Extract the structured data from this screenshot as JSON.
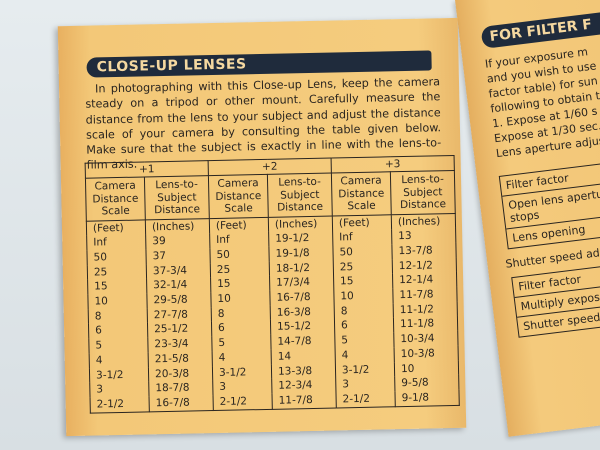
{
  "left_page": {
    "title": "CLOSE-UP LENSES",
    "intro": "In photographing with this Close-up Lens, keep the camera steady on a tripod or other mount. Carefully measure the distance from the lens to your subject and adjust the distance scale of your camera by consulting the table given below. Make sure that the subject is exactly in line with the lens-to-film axis.",
    "table": {
      "groups": [
        "+1",
        "+2",
        "+3"
      ],
      "col_headers": [
        "Camera Distance Scale",
        "Lens-to-Subject Distance"
      ],
      "units": [
        "(Feet)",
        "(Inches)"
      ],
      "camera_scale": [
        "Inf",
        "50",
        "25",
        "15",
        "10",
        "8",
        "6",
        "5",
        "4",
        "3-1/2",
        "3",
        "2-1/2"
      ],
      "plus1": [
        "39",
        "37",
        "37-3/4",
        "32-1/4",
        "29-5/8",
        "27-7/8",
        "25-1/2",
        "23-3/4",
        "21-5/8",
        "20-3/8",
        "18-7/8",
        "16-7/8"
      ],
      "plus2": [
        "19-1/2",
        "19-1/8",
        "18-1/2",
        "17/3/4",
        "16-7/8",
        "16-3/8",
        "15-1/2",
        "14-7/8",
        "14",
        "13-3/8",
        "12-3/4",
        "11-7/8"
      ],
      "plus3": [
        "13",
        "13-7/8",
        "12-1/2",
        "12-1/4",
        "11-7/8",
        "11-1/2",
        "11-1/8",
        "10-3/4",
        "10-3/8",
        "10",
        "9-5/8",
        "9-1/8"
      ]
    }
  },
  "right_page": {
    "title": "FOR FILTER F",
    "intro_lines": [
      "If your exposure m",
      "and you wish to use",
      "factor table) for sun",
      "following to obtain th",
      "1. Expose at 1/60 s",
      "Expose at 1/30 sec.",
      "Lens aperture adjust"
    ],
    "box1": [
      "Filter factor",
      "Open lens aperture of stops",
      "Lens opening"
    ],
    "shutter_label": "Shutter speed adjust",
    "box2": [
      "Filter factor",
      "Multiply exposure b",
      "Shutter speed"
    ]
  }
}
